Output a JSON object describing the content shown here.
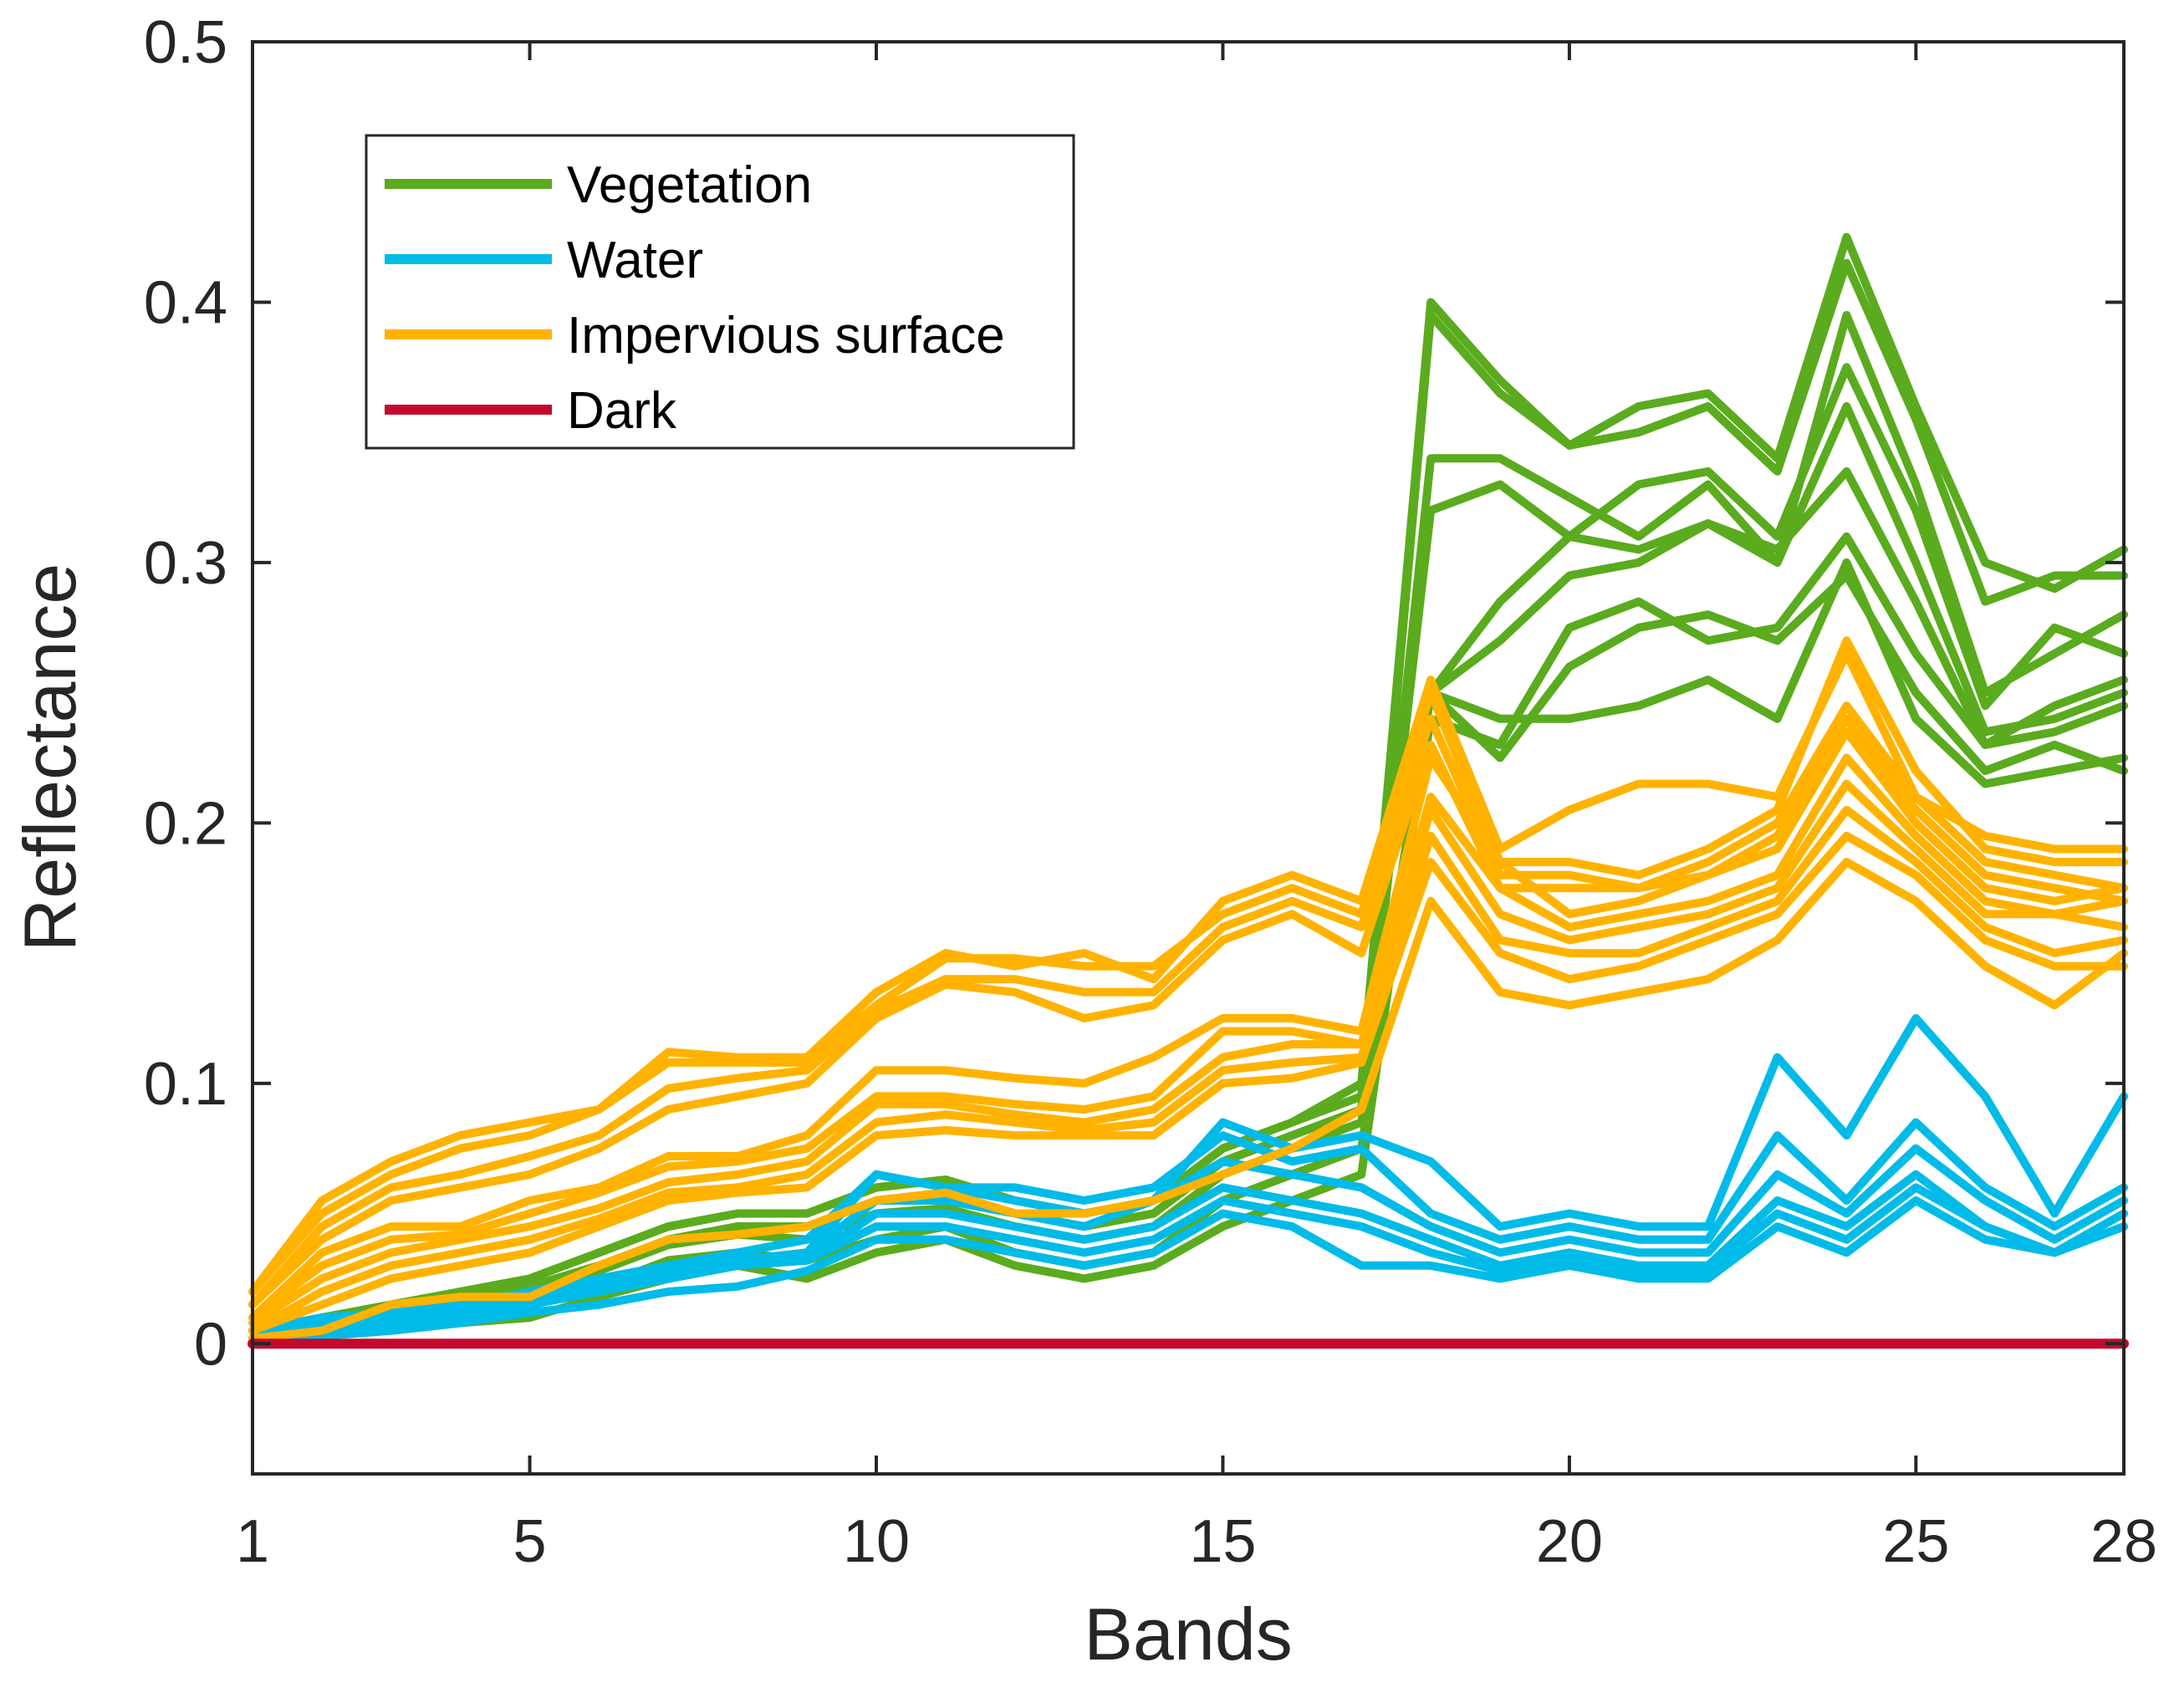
{
  "chart_data": {
    "type": "line",
    "xlabel": "Bands",
    "ylabel": "Reflectance",
    "xlim": [
      1,
      28
    ],
    "ylim": [
      -0.05,
      0.5
    ],
    "xticks": [
      1,
      5,
      10,
      15,
      20,
      25,
      28
    ],
    "yticks": [
      0,
      0.1,
      0.2,
      0.3,
      0.4,
      0.5
    ],
    "ytick_labels": [
      "0",
      "0.1",
      "0.2",
      "0.3",
      "0.4",
      "0.5"
    ],
    "grid": false,
    "legend_position": "top-left",
    "x": [
      1,
      2,
      3,
      4,
      5,
      6,
      7,
      8,
      9,
      10,
      11,
      12,
      13,
      14,
      15,
      16,
      17,
      18,
      19,
      20,
      21,
      22,
      23,
      24,
      25,
      26,
      27,
      28
    ],
    "classes": [
      {
        "name": "Vegetation",
        "color": "#5aab1e",
        "lines": [
          [
            0.005,
            0.01,
            0.015,
            0.02,
            0.025,
            0.035,
            0.045,
            0.05,
            0.05,
            0.06,
            0.063,
            0.055,
            0.05,
            0.055,
            0.075,
            0.085,
            0.1,
            0.4,
            0.37,
            0.345,
            0.36,
            0.365,
            0.34,
            0.425,
            0.36,
            0.3,
            0.29,
            0.305
          ],
          [
            0.005,
            0.01,
            0.015,
            0.02,
            0.025,
            0.035,
            0.045,
            0.05,
            0.05,
            0.06,
            0.063,
            0.055,
            0.05,
            0.055,
            0.075,
            0.085,
            0.095,
            0.395,
            0.365,
            0.345,
            0.35,
            0.36,
            0.335,
            0.415,
            0.355,
            0.285,
            0.295,
            0.295
          ],
          [
            0.005,
            0.008,
            0.012,
            0.018,
            0.022,
            0.03,
            0.04,
            0.045,
            0.045,
            0.055,
            0.058,
            0.05,
            0.045,
            0.05,
            0.07,
            0.08,
            0.09,
            0.34,
            0.34,
            0.325,
            0.31,
            0.33,
            0.3,
            0.395,
            0.33,
            0.25,
            0.265,
            0.28
          ],
          [
            0.005,
            0.008,
            0.012,
            0.018,
            0.022,
            0.03,
            0.04,
            0.045,
            0.045,
            0.055,
            0.058,
            0.05,
            0.045,
            0.05,
            0.07,
            0.08,
            0.09,
            0.32,
            0.33,
            0.31,
            0.33,
            0.335,
            0.31,
            0.375,
            0.32,
            0.245,
            0.275,
            0.265
          ],
          [
            0.005,
            0.008,
            0.01,
            0.015,
            0.02,
            0.028,
            0.038,
            0.042,
            0.04,
            0.05,
            0.052,
            0.045,
            0.04,
            0.045,
            0.065,
            0.075,
            0.085,
            0.25,
            0.285,
            0.31,
            0.305,
            0.315,
            0.3,
            0.36,
            0.3,
            0.235,
            0.24,
            0.25
          ],
          [
            0.005,
            0.008,
            0.01,
            0.015,
            0.02,
            0.028,
            0.038,
            0.042,
            0.04,
            0.05,
            0.052,
            0.045,
            0.04,
            0.045,
            0.065,
            0.075,
            0.085,
            0.25,
            0.27,
            0.295,
            0.3,
            0.315,
            0.305,
            0.335,
            0.285,
            0.23,
            0.245,
            0.255
          ],
          [
            0.005,
            0.005,
            0.008,
            0.012,
            0.015,
            0.022,
            0.032,
            0.035,
            0.032,
            0.04,
            0.045,
            0.035,
            0.03,
            0.035,
            0.055,
            0.065,
            0.075,
            0.24,
            0.23,
            0.275,
            0.285,
            0.27,
            0.275,
            0.31,
            0.265,
            0.23,
            0.235,
            0.245
          ],
          [
            0.005,
            0.005,
            0.008,
            0.012,
            0.015,
            0.022,
            0.032,
            0.035,
            0.032,
            0.04,
            0.045,
            0.035,
            0.03,
            0.035,
            0.055,
            0.065,
            0.075,
            0.25,
            0.225,
            0.26,
            0.275,
            0.28,
            0.27,
            0.295,
            0.25,
            0.22,
            0.23,
            0.22
          ],
          [
            0.002,
            0.003,
            0.005,
            0.008,
            0.01,
            0.018,
            0.025,
            0.03,
            0.025,
            0.035,
            0.04,
            0.03,
            0.025,
            0.03,
            0.045,
            0.055,
            0.065,
            0.25,
            0.24,
            0.24,
            0.245,
            0.255,
            0.24,
            0.3,
            0.24,
            0.215,
            0.22,
            0.225
          ]
        ]
      },
      {
        "name": "Water",
        "color": "#00bbe8",
        "lines": [
          [
            0.005,
            0.01,
            0.012,
            0.015,
            0.02,
            0.025,
            0.03,
            0.035,
            0.04,
            0.065,
            0.06,
            0.055,
            0.05,
            0.055,
            0.085,
            0.075,
            0.08,
            0.07,
            0.045,
            0.05,
            0.045,
            0.045,
            0.11,
            0.08,
            0.125,
            0.095,
            0.05,
            0.095
          ],
          [
            0.002,
            0.008,
            0.01,
            0.012,
            0.018,
            0.022,
            0.028,
            0.032,
            0.035,
            0.065,
            0.06,
            0.06,
            0.055,
            0.06,
            0.08,
            0.07,
            0.075,
            0.05,
            0.04,
            0.045,
            0.04,
            0.04,
            0.08,
            0.055,
            0.085,
            0.06,
            0.045,
            0.06
          ],
          [
            0.002,
            0.008,
            0.01,
            0.012,
            0.018,
            0.022,
            0.028,
            0.032,
            0.035,
            0.055,
            0.055,
            0.05,
            0.045,
            0.055,
            0.07,
            0.065,
            0.06,
            0.045,
            0.035,
            0.04,
            0.035,
            0.035,
            0.065,
            0.05,
            0.075,
            0.055,
            0.04,
            0.055
          ],
          [
            0.002,
            0.005,
            0.008,
            0.01,
            0.015,
            0.02,
            0.025,
            0.03,
            0.032,
            0.05,
            0.05,
            0.045,
            0.04,
            0.045,
            0.06,
            0.055,
            0.05,
            0.04,
            0.03,
            0.035,
            0.03,
            0.03,
            0.055,
            0.045,
            0.065,
            0.045,
            0.035,
            0.05
          ],
          [
            0.002,
            0.005,
            0.008,
            0.01,
            0.015,
            0.02,
            0.025,
            0.03,
            0.032,
            0.045,
            0.045,
            0.04,
            0.035,
            0.04,
            0.055,
            0.05,
            0.045,
            0.035,
            0.028,
            0.032,
            0.028,
            0.028,
            0.05,
            0.04,
            0.06,
            0.045,
            0.035,
            0.045
          ],
          [
            0.0,
            0.003,
            0.005,
            0.008,
            0.012,
            0.015,
            0.02,
            0.022,
            0.028,
            0.04,
            0.04,
            0.035,
            0.03,
            0.035,
            0.05,
            0.045,
            0.03,
            0.03,
            0.025,
            0.03,
            0.025,
            0.025,
            0.045,
            0.035,
            0.055,
            0.04,
            0.035,
            0.045
          ]
        ]
      },
      {
        "name": "Impervious surface",
        "color": "#ffb300",
        "lines": [
          [
            0.02,
            0.055,
            0.07,
            0.08,
            0.085,
            0.09,
            0.112,
            0.11,
            0.11,
            0.135,
            0.15,
            0.145,
            0.15,
            0.14,
            0.17,
            0.18,
            0.17,
            0.255,
            0.19,
            0.205,
            0.215,
            0.215,
            0.21,
            0.265,
            0.21,
            0.195,
            0.19,
            0.19
          ],
          [
            0.02,
            0.05,
            0.065,
            0.075,
            0.08,
            0.09,
            0.108,
            0.108,
            0.108,
            0.13,
            0.148,
            0.148,
            0.145,
            0.145,
            0.165,
            0.175,
            0.165,
            0.25,
            0.185,
            0.185,
            0.18,
            0.19,
            0.205,
            0.27,
            0.22,
            0.19,
            0.185,
            0.185
          ],
          [
            0.015,
            0.045,
            0.06,
            0.065,
            0.072,
            0.08,
            0.098,
            0.102,
            0.105,
            0.128,
            0.14,
            0.14,
            0.135,
            0.135,
            0.16,
            0.17,
            0.16,
            0.24,
            0.18,
            0.18,
            0.175,
            0.185,
            0.2,
            0.245,
            0.21,
            0.185,
            0.18,
            0.175
          ],
          [
            0.015,
            0.04,
            0.055,
            0.06,
            0.065,
            0.075,
            0.09,
            0.095,
            0.1,
            0.125,
            0.138,
            0.135,
            0.125,
            0.13,
            0.155,
            0.165,
            0.15,
            0.23,
            0.175,
            0.175,
            0.175,
            0.18,
            0.195,
            0.24,
            0.205,
            0.18,
            0.175,
            0.17
          ],
          [
            0.01,
            0.035,
            0.045,
            0.045,
            0.055,
            0.06,
            0.072,
            0.072,
            0.08,
            0.105,
            0.105,
            0.102,
            0.1,
            0.11,
            0.125,
            0.125,
            0.12,
            0.225,
            0.185,
            0.165,
            0.17,
            0.18,
            0.19,
            0.235,
            0.2,
            0.175,
            0.17,
            0.175
          ],
          [
            0.01,
            0.03,
            0.04,
            0.042,
            0.05,
            0.058,
            0.068,
            0.07,
            0.075,
            0.095,
            0.095,
            0.092,
            0.09,
            0.095,
            0.12,
            0.12,
            0.115,
            0.21,
            0.175,
            0.16,
            0.165,
            0.17,
            0.18,
            0.225,
            0.195,
            0.17,
            0.165,
            0.17
          ],
          [
            0.008,
            0.025,
            0.035,
            0.04,
            0.045,
            0.052,
            0.062,
            0.065,
            0.07,
            0.092,
            0.092,
            0.088,
            0.085,
            0.09,
            0.11,
            0.115,
            0.115,
            0.205,
            0.165,
            0.155,
            0.16,
            0.165,
            0.175,
            0.215,
            0.19,
            0.165,
            0.165,
            0.16
          ],
          [
            0.005,
            0.02,
            0.03,
            0.035,
            0.04,
            0.048,
            0.058,
            0.06,
            0.065,
            0.085,
            0.088,
            0.085,
            0.082,
            0.085,
            0.105,
            0.108,
            0.11,
            0.195,
            0.155,
            0.15,
            0.15,
            0.16,
            0.17,
            0.205,
            0.185,
            0.16,
            0.15,
            0.155
          ],
          [
            0.005,
            0.015,
            0.025,
            0.03,
            0.035,
            0.045,
            0.055,
            0.058,
            0.06,
            0.08,
            0.082,
            0.08,
            0.08,
            0.08,
            0.1,
            0.102,
            0.108,
            0.185,
            0.15,
            0.14,
            0.145,
            0.155,
            0.165,
            0.195,
            0.18,
            0.155,
            0.145,
            0.145
          ],
          [
            0.002,
            0.005,
            0.015,
            0.018,
            0.018,
            0.03,
            0.04,
            0.042,
            0.045,
            0.055,
            0.058,
            0.05,
            0.05,
            0.055,
            0.065,
            0.075,
            0.09,
            0.17,
            0.135,
            0.13,
            0.135,
            0.14,
            0.155,
            0.185,
            0.17,
            0.145,
            0.13,
            0.15
          ]
        ]
      },
      {
        "name": "Dark",
        "color": "#c4092e",
        "lines": [
          [
            0,
            0,
            0,
            0,
            0,
            0,
            0,
            0,
            0,
            0,
            0,
            0,
            0,
            0,
            0,
            0,
            0,
            0,
            0,
            0,
            0,
            0,
            0,
            0,
            0,
            0,
            0,
            0
          ]
        ]
      }
    ]
  }
}
